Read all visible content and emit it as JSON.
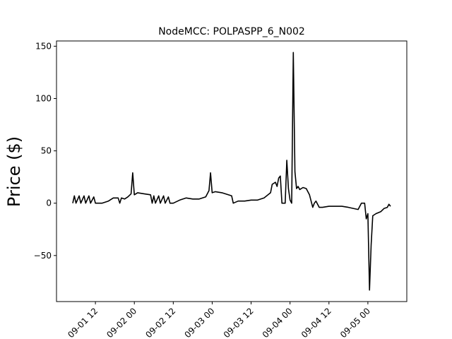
{
  "chart_data": {
    "type": "line",
    "title": "NodeMCC: POLPASPP_6_N002",
    "xlabel": "",
    "ylabel": "Price ($)",
    "xlim": [
      "2016-09-01 00:00",
      "2016-09-05 12:00"
    ],
    "ylim": [
      -94,
      155
    ],
    "grid": false,
    "legend": "none",
    "x_ticks": [
      {
        "x": "2016-09-01 12:00",
        "label": "09-01 12"
      },
      {
        "x": "2016-09-02 00:00",
        "label": "09-02 00"
      },
      {
        "x": "2016-09-02 12:00",
        "label": "09-02 12"
      },
      {
        "x": "2016-09-03 00:00",
        "label": "09-03 00"
      },
      {
        "x": "2016-09-03 12:00",
        "label": "09-03 12"
      },
      {
        "x": "2016-09-04 00:00",
        "label": "09-04 00"
      },
      {
        "x": "2016-09-04 12:00",
        "label": "09-04 12"
      },
      {
        "x": "2016-09-05 00:00",
        "label": "09-05 00"
      }
    ],
    "y_ticks": [
      {
        "y": 150,
        "label": "150"
      },
      {
        "y": 100,
        "label": "100"
      },
      {
        "y": 50,
        "label": "50"
      },
      {
        "y": 0,
        "label": "0"
      },
      {
        "y": -50,
        "label": "−50"
      }
    ],
    "series": [
      {
        "color": "#000000",
        "points": [
          [
            "2016-09-01 05:00",
            0
          ],
          [
            "2016-09-01 05:30",
            7
          ],
          [
            "2016-09-01 06:00",
            0
          ],
          [
            "2016-09-01 07:00",
            7
          ],
          [
            "2016-09-01 07:30",
            0
          ],
          [
            "2016-09-01 08:30",
            7
          ],
          [
            "2016-09-01 09:00",
            0
          ],
          [
            "2016-09-01 10:00",
            7
          ],
          [
            "2016-09-01 10:30",
            0
          ],
          [
            "2016-09-01 11:30",
            6
          ],
          [
            "2016-09-01 12:00",
            0
          ],
          [
            "2016-09-01 14:00",
            0
          ],
          [
            "2016-09-01 16:00",
            2
          ],
          [
            "2016-09-01 17:30",
            5
          ],
          [
            "2016-09-01 19:00",
            5
          ],
          [
            "2016-09-01 19:30",
            0
          ],
          [
            "2016-09-01 20:00",
            5
          ],
          [
            "2016-09-01 21:00",
            4
          ],
          [
            "2016-09-01 22:00",
            6
          ],
          [
            "2016-09-01 23:00",
            9
          ],
          [
            "2016-09-01 23:30",
            29
          ],
          [
            "2016-09-02 00:00",
            8
          ],
          [
            "2016-09-02 01:00",
            10
          ],
          [
            "2016-09-02 03:00",
            9
          ],
          [
            "2016-09-02 05:00",
            8
          ],
          [
            "2016-09-02 05:30",
            0
          ],
          [
            "2016-09-02 06:00",
            7
          ],
          [
            "2016-09-02 06:30",
            0
          ],
          [
            "2016-09-02 07:30",
            7
          ],
          [
            "2016-09-02 08:00",
            0
          ],
          [
            "2016-09-02 09:00",
            7
          ],
          [
            "2016-09-02 09:30",
            0
          ],
          [
            "2016-09-02 10:30",
            6
          ],
          [
            "2016-09-02 11:00",
            0
          ],
          [
            "2016-09-02 12:00",
            0
          ],
          [
            "2016-09-02 14:00",
            3
          ],
          [
            "2016-09-02 16:00",
            5
          ],
          [
            "2016-09-02 18:00",
            4
          ],
          [
            "2016-09-02 20:00",
            4
          ],
          [
            "2016-09-02 22:00",
            6
          ],
          [
            "2016-09-02 23:00",
            12
          ],
          [
            "2016-09-02 23:30",
            29
          ],
          [
            "2016-09-03 00:00",
            10
          ],
          [
            "2016-09-03 01:00",
            11
          ],
          [
            "2016-09-03 03:00",
            10
          ],
          [
            "2016-09-03 06:00",
            7
          ],
          [
            "2016-09-03 06:30",
            0
          ],
          [
            "2016-09-03 08:00",
            2
          ],
          [
            "2016-09-03 10:00",
            2
          ],
          [
            "2016-09-03 12:00",
            3
          ],
          [
            "2016-09-03 14:00",
            3
          ],
          [
            "2016-09-03 16:00",
            5
          ],
          [
            "2016-09-03 18:00",
            10
          ],
          [
            "2016-09-03 18:30",
            18
          ],
          [
            "2016-09-03 19:30",
            20
          ],
          [
            "2016-09-03 20:00",
            16
          ],
          [
            "2016-09-03 20:30",
            24
          ],
          [
            "2016-09-03 21:00",
            26
          ],
          [
            "2016-09-03 21:30",
            0
          ],
          [
            "2016-09-03 22:30",
            0
          ],
          [
            "2016-09-03 23:00",
            41
          ],
          [
            "2016-09-03 23:30",
            14
          ],
          [
            "2016-09-04 00:00",
            3
          ],
          [
            "2016-09-04 00:30",
            0
          ],
          [
            "2016-09-04 01:00",
            144
          ],
          [
            "2016-09-04 01:30",
            30
          ],
          [
            "2016-09-04 02:00",
            14
          ],
          [
            "2016-09-04 02:30",
            16
          ],
          [
            "2016-09-04 03:00",
            13
          ],
          [
            "2016-09-04 04:00",
            15
          ],
          [
            "2016-09-04 05:00",
            14
          ],
          [
            "2016-09-04 06:00",
            8
          ],
          [
            "2016-09-04 07:00",
            -4
          ],
          [
            "2016-09-04 07:30",
            0
          ],
          [
            "2016-09-04 08:00",
            2
          ],
          [
            "2016-09-04 09:00",
            -4
          ],
          [
            "2016-09-04 10:00",
            -4
          ],
          [
            "2016-09-04 12:00",
            -3
          ],
          [
            "2016-09-04 16:00",
            -3
          ],
          [
            "2016-09-04 18:00",
            -4
          ],
          [
            "2016-09-04 21:00",
            -6
          ],
          [
            "2016-09-04 22:00",
            0
          ],
          [
            "2016-09-04 23:00",
            0
          ],
          [
            "2016-09-04 23:30",
            -15
          ],
          [
            "2016-09-05 00:00",
            -10
          ],
          [
            "2016-09-05 00:30",
            -83
          ],
          [
            "2016-09-05 01:00",
            -40
          ],
          [
            "2016-09-05 01:30",
            -12
          ],
          [
            "2016-09-05 02:30",
            -10
          ],
          [
            "2016-09-05 04:00",
            -8
          ],
          [
            "2016-09-05 05:00",
            -5
          ],
          [
            "2016-09-05 06:00",
            -4
          ],
          [
            "2016-09-05 06:30",
            -1
          ],
          [
            "2016-09-05 07:00",
            -3
          ]
        ]
      }
    ]
  }
}
